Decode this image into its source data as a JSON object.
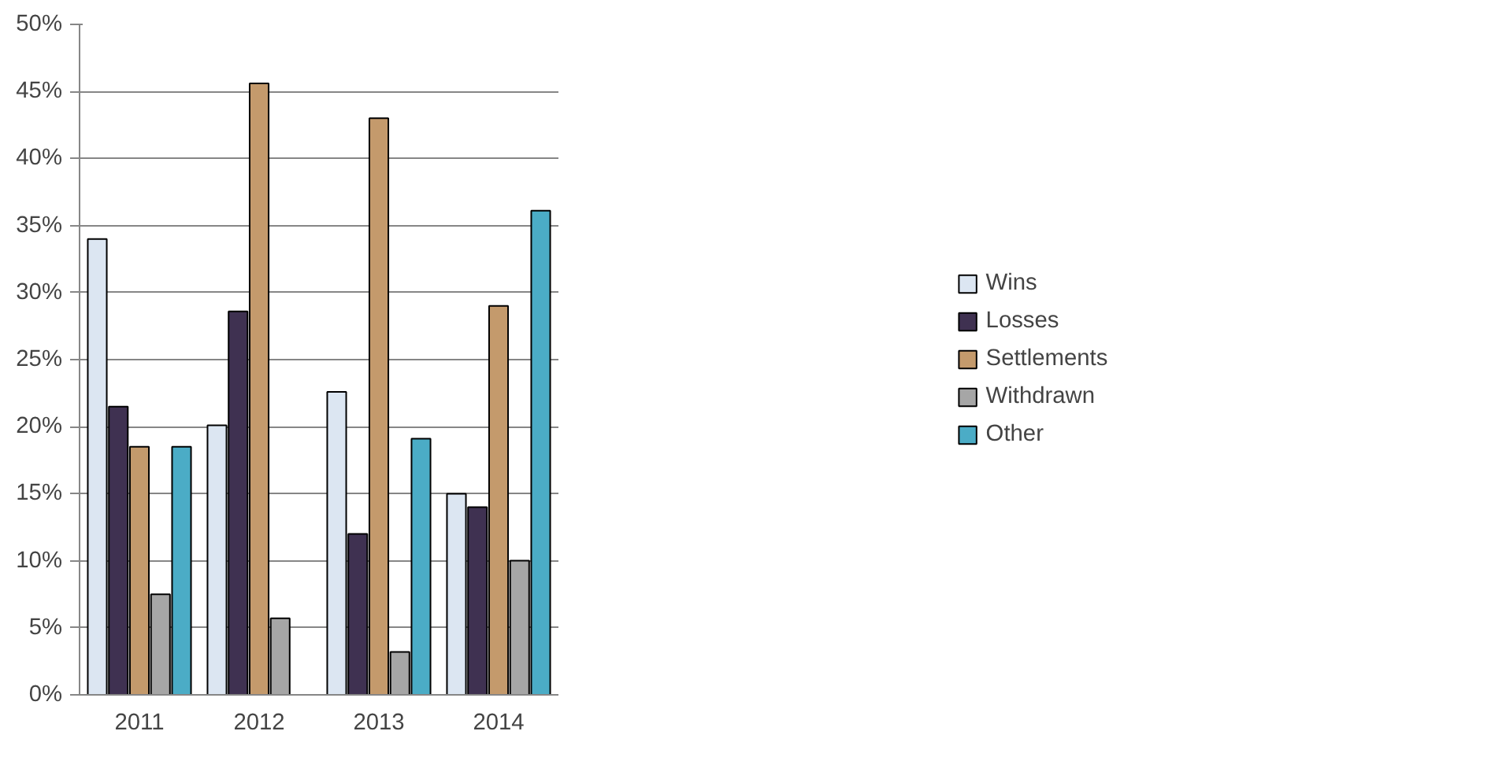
{
  "chart_data": {
    "type": "bar",
    "categories": [
      "2011",
      "2012",
      "2013",
      "2014"
    ],
    "series": [
      {
        "name": "Wins",
        "color": "#dce6f2",
        "values": [
          34,
          20.1,
          22.6,
          15
        ]
      },
      {
        "name": "Losses",
        "color": "#3f3151",
        "values": [
          21.5,
          28.6,
          12,
          14
        ]
      },
      {
        "name": "Settlements",
        "color": "#c49a6c",
        "values": [
          18.5,
          45.6,
          43,
          29
        ]
      },
      {
        "name": "Withdrawn",
        "color": "#a6a6a6",
        "values": [
          7.5,
          5.7,
          3.2,
          10
        ]
      },
      {
        "name": "Other",
        "color": "#4bacc6",
        "values": [
          18.5,
          null,
          19.1,
          36.1
        ]
      }
    ],
    "ylim": [
      0,
      50
    ],
    "yticks": [
      {
        "value": 0,
        "label": "0%"
      },
      {
        "value": 5,
        "label": "5%"
      },
      {
        "value": 10,
        "label": "10%"
      },
      {
        "value": 15,
        "label": "15%"
      },
      {
        "value": 20,
        "label": "20%"
      },
      {
        "value": 25,
        "label": "25%"
      },
      {
        "value": 30,
        "label": "30%"
      },
      {
        "value": 35,
        "label": "35%"
      },
      {
        "value": 40,
        "label": "40%"
      },
      {
        "value": 45,
        "label": "45%"
      },
      {
        "value": 50,
        "label": "50%"
      }
    ],
    "grid": "y",
    "legend": "right"
  }
}
